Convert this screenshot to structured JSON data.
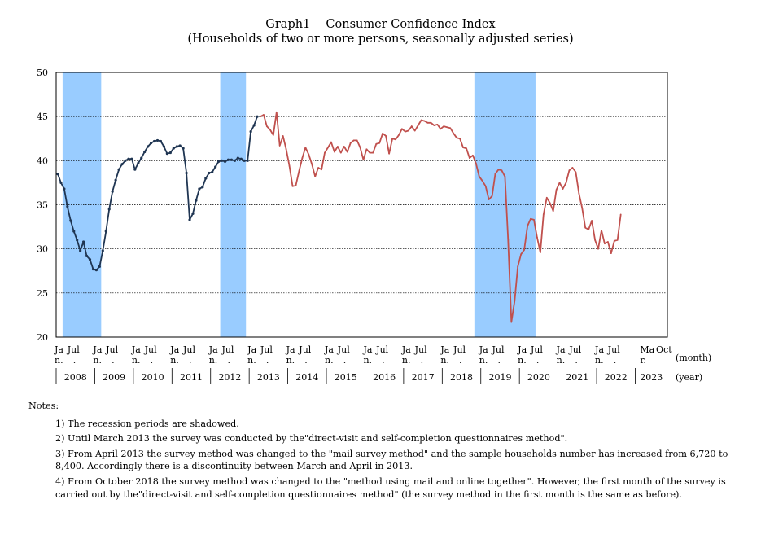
{
  "title": {
    "line1": "Graph1　 Consumer Confidence Index",
    "line2": "(Households of two or more persons, seasonally adjusted series)"
  },
  "chart_data": {
    "type": "line",
    "title": "Graph1 Consumer Confidence Index",
    "subtitle": "(Households of two or more persons, seasonally adjusted series)",
    "ylim": [
      20,
      50
    ],
    "yticks": [
      20,
      25,
      30,
      35,
      40,
      45,
      50
    ],
    "x_unit_label": "(month)",
    "year_unit_label": "(year)",
    "month_tick_groups": [
      {
        "labels": [
          "Ja n.",
          "Jul"
        ]
      },
      {
        "labels": [
          "Ja n.",
          "Jul"
        ]
      },
      {
        "labels": [
          "Ja n.",
          "Jul"
        ]
      },
      {
        "labels": [
          "Ja n.",
          "Jul"
        ]
      },
      {
        "labels": [
          "Ja n.",
          "Jul"
        ]
      },
      {
        "labels": [
          "Ja n.",
          "Jul"
        ]
      },
      {
        "labels": [
          "Ja n.",
          "Jul"
        ]
      },
      {
        "labels": [
          "Ja n.",
          "Jul"
        ]
      },
      {
        "labels": [
          "Ja n.",
          "Jul"
        ]
      },
      {
        "labels": [
          "Ja n.",
          "Jul"
        ]
      },
      {
        "labels": [
          "Ja n.",
          "Jul"
        ]
      },
      {
        "labels": [
          "Ja n.",
          "Jul"
        ]
      },
      {
        "labels": [
          "Ja n.",
          "Jul"
        ]
      },
      {
        "labels": [
          "Ja n.",
          "Jul"
        ]
      },
      {
        "labels": [
          "Ja n.",
          "Jul"
        ]
      },
      {
        "labels": [
          "Ma r.",
          "Oct"
        ]
      }
    ],
    "years": [
      "2008",
      "2009",
      "2010",
      "2011",
      "2012",
      "2013",
      "2014",
      "2015",
      "2016",
      "2017",
      "2018",
      "2019",
      "2020",
      "2021",
      "2022",
      "2023"
    ],
    "recession_periods": [
      {
        "start": "2008-03",
        "end": "2009-02"
      },
      {
        "start": "2012-04",
        "end": "2012-11"
      },
      {
        "start": "2018-11",
        "end": "2020-05"
      }
    ],
    "grid": true,
    "series": [
      {
        "color": "#1f3552",
        "marker": "dot",
        "start": "2008-01",
        "values": [
          38.5,
          37.5,
          36.8,
          34.8,
          33.2,
          32.0,
          31.0,
          29.8,
          30.8,
          29.2,
          28.8,
          27.7,
          27.6,
          28.0,
          29.8,
          32.0,
          34.5,
          36.5,
          37.8,
          39.0,
          39.6,
          40.0,
          40.2,
          40.2,
          39.0,
          39.7,
          40.3,
          41.0,
          41.6,
          42.0,
          42.2,
          42.3,
          42.2,
          41.6,
          40.8,
          40.9,
          41.4,
          41.6,
          41.7,
          41.4,
          38.6,
          33.3,
          34.0,
          35.5,
          36.8,
          37.0,
          38.0,
          38.6,
          38.7,
          39.3,
          39.9,
          40.0,
          39.9,
          40.1,
          40.1,
          40.0,
          40.3,
          40.2,
          40.0,
          40.0,
          43.3,
          44.0,
          45.0
        ]
      },
      {
        "color": "#c0504d",
        "marker": "none",
        "start": "2013-04",
        "values": [
          45.0,
          45.2,
          43.9,
          43.5,
          42.9,
          45.5,
          41.7,
          42.8,
          41.3,
          39.4,
          37.1,
          37.2,
          38.8,
          40.3,
          41.5,
          40.7,
          39.6,
          38.2,
          39.2,
          39.0,
          40.9,
          41.5,
          42.1,
          41.0,
          41.6,
          40.9,
          41.6,
          41.0,
          42.0,
          42.3,
          42.3,
          41.5,
          40.1,
          41.3,
          40.9,
          40.9,
          41.9,
          42.0,
          43.1,
          42.8,
          40.8,
          42.5,
          42.4,
          42.9,
          43.6,
          43.3,
          43.4,
          43.9,
          43.4,
          44.0,
          44.6,
          44.5,
          44.3,
          44.3,
          44.0,
          44.1,
          43.6,
          43.9,
          43.8,
          43.7,
          43.1,
          42.6,
          42.5,
          41.5,
          41.4,
          40.3,
          40.6,
          39.7,
          38.2,
          37.7,
          37.1,
          35.6,
          36.0,
          38.5,
          39.0,
          38.9,
          38.2,
          31.0,
          21.7,
          24.1,
          28.0,
          29.4,
          29.9,
          32.6,
          33.4,
          33.3,
          31.3,
          29.6,
          33.9,
          35.8,
          35.2,
          34.3,
          36.7,
          37.5,
          36.8,
          37.5,
          38.9,
          39.2,
          38.7,
          36.3,
          34.6,
          32.4,
          32.2,
          33.2,
          31.0,
          30.0,
          32.1,
          30.6,
          30.8,
          29.5,
          30.9,
          31.0,
          33.9
        ]
      }
    ]
  },
  "notes": {
    "title": "Notes:",
    "items": [
      "1) The recession periods are shadowed.",
      "2) Until March 2013 the survey was conducted by the\"direct-visit and self-completion questionnaires method\".",
      "3) From April 2013 the survey method was changed to the \"mail survey method\" and the sample households number has increased from 6,720 to 8,400. Accordingly there is a discontinuity between March and April in 2013.",
      "4) From October 2018 the survey method was changed to the \"method using mail and online together\". However, the first month of the survey is carried out by the\"direct-visit and self-completion questionnaires method\" (the survey method in the first month is the same as before)."
    ]
  }
}
